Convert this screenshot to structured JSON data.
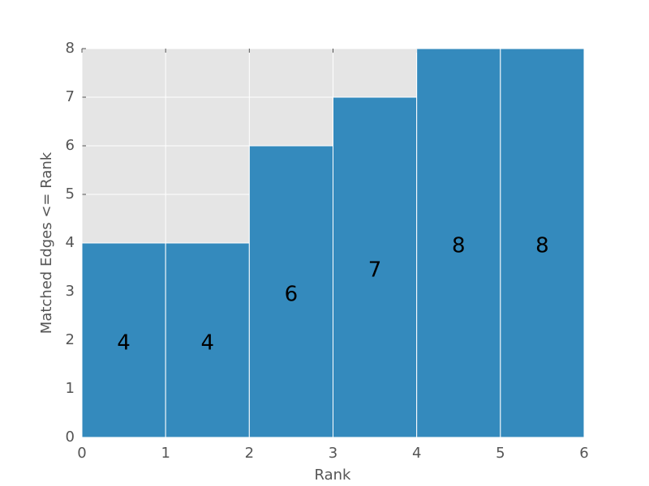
{
  "chart_data": {
    "type": "histogram",
    "xlabel": "Rank",
    "ylabel": "Matched Edges <= Rank",
    "bins": [
      0,
      1,
      2,
      3,
      4,
      5,
      6
    ],
    "values": [
      4,
      4,
      6,
      7,
      8,
      8
    ],
    "color": "#348abd",
    "xlim": [
      0,
      6
    ],
    "xticks": [
      0,
      1,
      2,
      3,
      4,
      5,
      6
    ],
    "ylim": [
      0,
      8
    ],
    "yticks": [
      0,
      1,
      2,
      3,
      4,
      5,
      6,
      7,
      8
    ],
    "grid": true
  }
}
